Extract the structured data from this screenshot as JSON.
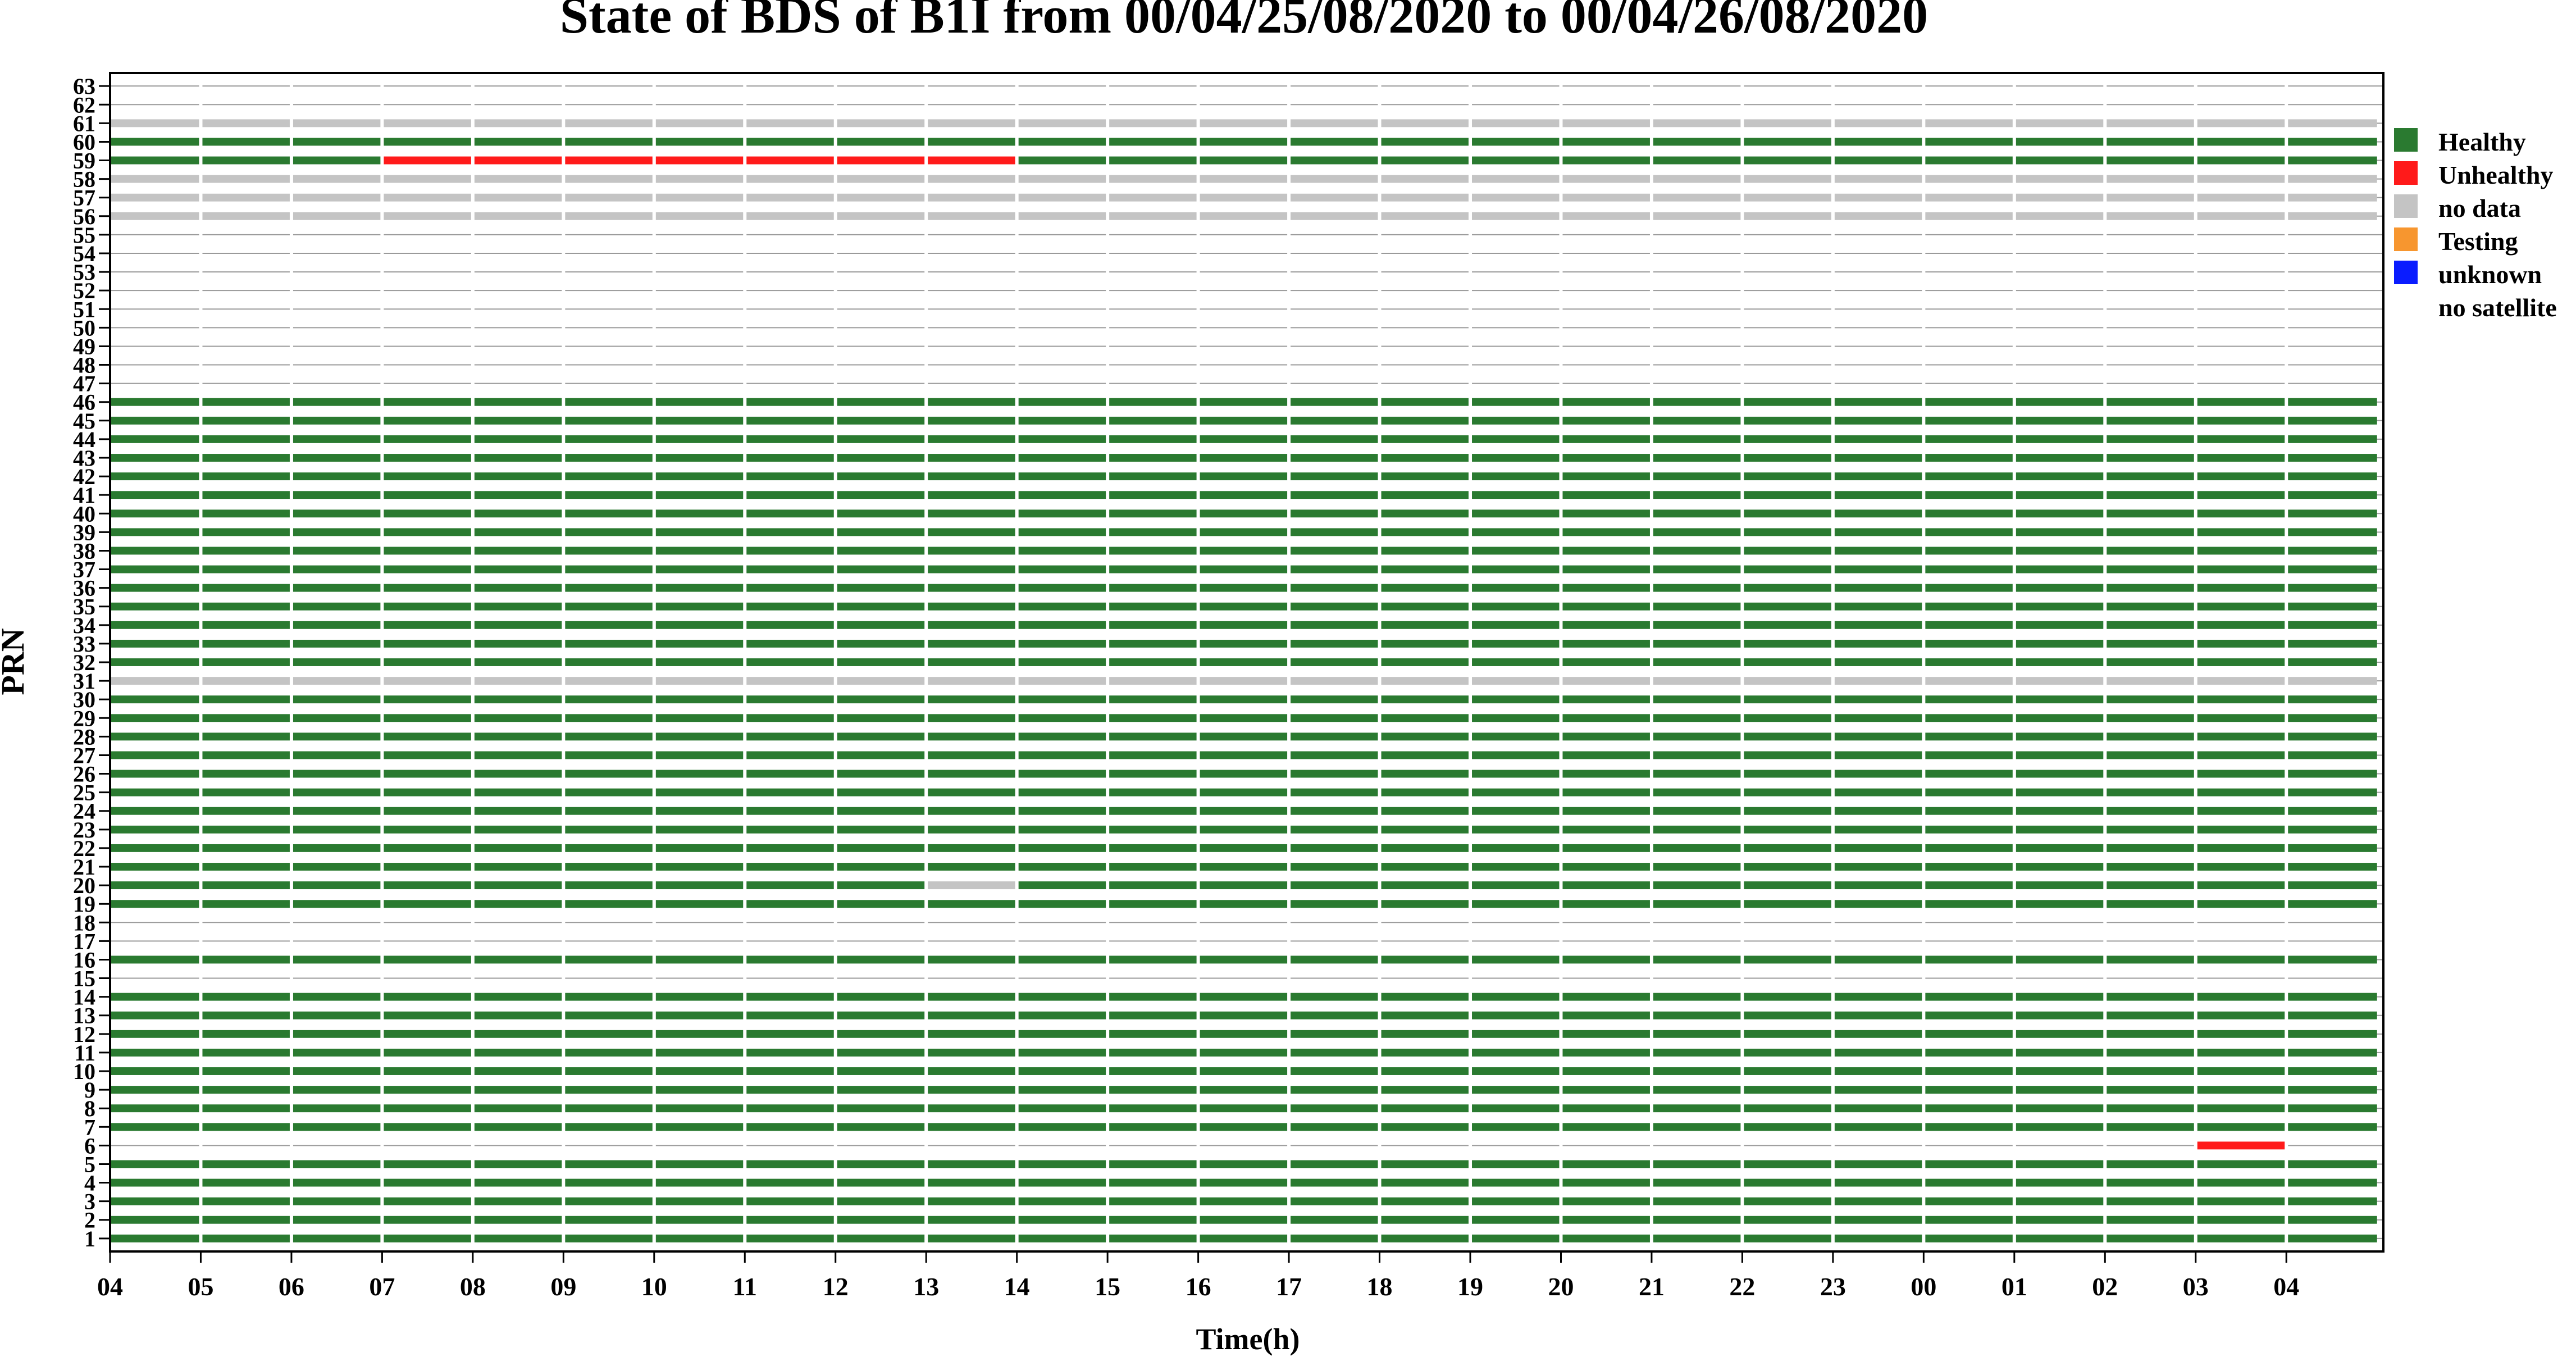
{
  "chart_data": {
    "type": "heatmap",
    "title": "State of BDS of B1I from 00/04/25/08/2020 to 00/04/26/08/2020",
    "xlabel": "Time(h)",
    "ylabel": "PRN",
    "x_ticks": [
      "04",
      "05",
      "06",
      "07",
      "08",
      "09",
      "10",
      "11",
      "12",
      "13",
      "14",
      "15",
      "16",
      "17",
      "18",
      "19",
      "20",
      "21",
      "22",
      "23",
      "00",
      "01",
      "02",
      "03",
      "04"
    ],
    "x_range_hours": [
      0,
      25
    ],
    "y_ticks": [
      "1",
      "2",
      "3",
      "4",
      "5",
      "6",
      "7",
      "8",
      "9",
      "10",
      "11",
      "12",
      "13",
      "14",
      "15",
      "16",
      "17",
      "18",
      "19",
      "20",
      "21",
      "22",
      "23",
      "24",
      "25",
      "26",
      "27",
      "28",
      "29",
      "30",
      "31",
      "32",
      "33",
      "34",
      "35",
      "36",
      "37",
      "38",
      "39",
      "40",
      "41",
      "42",
      "43",
      "44",
      "45",
      "46",
      "47",
      "48",
      "49",
      "50",
      "51",
      "52",
      "53",
      "54",
      "55",
      "56",
      "57",
      "58",
      "59",
      "60",
      "61",
      "62",
      "63"
    ],
    "y_range": [
      1,
      63
    ],
    "grid": true,
    "legend_position": "right",
    "legend": [
      {
        "label": "Healthy",
        "color": "#2a7a30"
      },
      {
        "label": "Unhealthy",
        "color": "#ff1a1a"
      },
      {
        "label": "no data",
        "color": "#c4c4c4"
      },
      {
        "label": "Testing",
        "color": "#f7962f"
      },
      {
        "label": "unknown",
        "color": "#0a1cff"
      },
      {
        "label": "no satellite",
        "color": ""
      }
    ],
    "state_colors": {
      "healthy": "#2a7a30",
      "unhealthy": "#ff1a1a",
      "nodata": "#c4c4c4",
      "testing": "#f7962f",
      "unknown": "#0a1cff"
    },
    "series": [
      {
        "prn": 1,
        "segments": [
          {
            "start": 0,
            "end": 25,
            "state": "healthy"
          }
        ]
      },
      {
        "prn": 2,
        "segments": [
          {
            "start": 0,
            "end": 25,
            "state": "healthy"
          }
        ]
      },
      {
        "prn": 3,
        "segments": [
          {
            "start": 0,
            "end": 25,
            "state": "healthy"
          }
        ]
      },
      {
        "prn": 4,
        "segments": [
          {
            "start": 0,
            "end": 25,
            "state": "healthy"
          }
        ]
      },
      {
        "prn": 5,
        "segments": [
          {
            "start": 0,
            "end": 25,
            "state": "healthy"
          }
        ]
      },
      {
        "prn": 6,
        "segments": [
          {
            "start": 23,
            "end": 24,
            "state": "unhealthy"
          }
        ]
      },
      {
        "prn": 7,
        "segments": [
          {
            "start": 0,
            "end": 25,
            "state": "healthy"
          }
        ]
      },
      {
        "prn": 8,
        "segments": [
          {
            "start": 0,
            "end": 25,
            "state": "healthy"
          }
        ]
      },
      {
        "prn": 9,
        "segments": [
          {
            "start": 0,
            "end": 25,
            "state": "healthy"
          }
        ]
      },
      {
        "prn": 10,
        "segments": [
          {
            "start": 0,
            "end": 25,
            "state": "healthy"
          }
        ]
      },
      {
        "prn": 11,
        "segments": [
          {
            "start": 0,
            "end": 25,
            "state": "healthy"
          }
        ]
      },
      {
        "prn": 12,
        "segments": [
          {
            "start": 0,
            "end": 25,
            "state": "healthy"
          }
        ]
      },
      {
        "prn": 13,
        "segments": [
          {
            "start": 0,
            "end": 25,
            "state": "healthy"
          }
        ]
      },
      {
        "prn": 14,
        "segments": [
          {
            "start": 0,
            "end": 25,
            "state": "healthy"
          }
        ]
      },
      {
        "prn": 15,
        "segments": []
      },
      {
        "prn": 16,
        "segments": [
          {
            "start": 0,
            "end": 25,
            "state": "healthy"
          }
        ]
      },
      {
        "prn": 17,
        "segments": []
      },
      {
        "prn": 18,
        "segments": []
      },
      {
        "prn": 19,
        "segments": [
          {
            "start": 0,
            "end": 25,
            "state": "healthy"
          }
        ]
      },
      {
        "prn": 20,
        "segments": [
          {
            "start": 0,
            "end": 9,
            "state": "healthy"
          },
          {
            "start": 9,
            "end": 10,
            "state": "nodata"
          },
          {
            "start": 10,
            "end": 25,
            "state": "healthy"
          }
        ]
      },
      {
        "prn": 21,
        "segments": [
          {
            "start": 0,
            "end": 25,
            "state": "healthy"
          }
        ]
      },
      {
        "prn": 22,
        "segments": [
          {
            "start": 0,
            "end": 25,
            "state": "healthy"
          }
        ]
      },
      {
        "prn": 23,
        "segments": [
          {
            "start": 0,
            "end": 25,
            "state": "healthy"
          }
        ]
      },
      {
        "prn": 24,
        "segments": [
          {
            "start": 0,
            "end": 25,
            "state": "healthy"
          }
        ]
      },
      {
        "prn": 25,
        "segments": [
          {
            "start": 0,
            "end": 25,
            "state": "healthy"
          }
        ]
      },
      {
        "prn": 26,
        "segments": [
          {
            "start": 0,
            "end": 25,
            "state": "healthy"
          }
        ]
      },
      {
        "prn": 27,
        "segments": [
          {
            "start": 0,
            "end": 25,
            "state": "healthy"
          }
        ]
      },
      {
        "prn": 28,
        "segments": [
          {
            "start": 0,
            "end": 25,
            "state": "healthy"
          }
        ]
      },
      {
        "prn": 29,
        "segments": [
          {
            "start": 0,
            "end": 25,
            "state": "healthy"
          }
        ]
      },
      {
        "prn": 30,
        "segments": [
          {
            "start": 0,
            "end": 25,
            "state": "healthy"
          }
        ]
      },
      {
        "prn": 31,
        "segments": [
          {
            "start": 0,
            "end": 25,
            "state": "nodata"
          }
        ]
      },
      {
        "prn": 32,
        "segments": [
          {
            "start": 0,
            "end": 25,
            "state": "healthy"
          }
        ]
      },
      {
        "prn": 33,
        "segments": [
          {
            "start": 0,
            "end": 25,
            "state": "healthy"
          }
        ]
      },
      {
        "prn": 34,
        "segments": [
          {
            "start": 0,
            "end": 25,
            "state": "healthy"
          }
        ]
      },
      {
        "prn": 35,
        "segments": [
          {
            "start": 0,
            "end": 25,
            "state": "healthy"
          }
        ]
      },
      {
        "prn": 36,
        "segments": [
          {
            "start": 0,
            "end": 25,
            "state": "healthy"
          }
        ]
      },
      {
        "prn": 37,
        "segments": [
          {
            "start": 0,
            "end": 25,
            "state": "healthy"
          }
        ]
      },
      {
        "prn": 38,
        "segments": [
          {
            "start": 0,
            "end": 25,
            "state": "healthy"
          }
        ]
      },
      {
        "prn": 39,
        "segments": [
          {
            "start": 0,
            "end": 25,
            "state": "healthy"
          }
        ]
      },
      {
        "prn": 40,
        "segments": [
          {
            "start": 0,
            "end": 25,
            "state": "healthy"
          }
        ]
      },
      {
        "prn": 41,
        "segments": [
          {
            "start": 0,
            "end": 25,
            "state": "healthy"
          }
        ]
      },
      {
        "prn": 42,
        "segments": [
          {
            "start": 0,
            "end": 25,
            "state": "healthy"
          }
        ]
      },
      {
        "prn": 43,
        "segments": [
          {
            "start": 0,
            "end": 25,
            "state": "healthy"
          }
        ]
      },
      {
        "prn": 44,
        "segments": [
          {
            "start": 0,
            "end": 25,
            "state": "healthy"
          }
        ]
      },
      {
        "prn": 45,
        "segments": [
          {
            "start": 0,
            "end": 25,
            "state": "healthy"
          }
        ]
      },
      {
        "prn": 46,
        "segments": [
          {
            "start": 0,
            "end": 25,
            "state": "healthy"
          }
        ]
      },
      {
        "prn": 47,
        "segments": []
      },
      {
        "prn": 48,
        "segments": []
      },
      {
        "prn": 49,
        "segments": []
      },
      {
        "prn": 50,
        "segments": []
      },
      {
        "prn": 51,
        "segments": []
      },
      {
        "prn": 52,
        "segments": []
      },
      {
        "prn": 53,
        "segments": []
      },
      {
        "prn": 54,
        "segments": []
      },
      {
        "prn": 55,
        "segments": []
      },
      {
        "prn": 56,
        "segments": [
          {
            "start": 0,
            "end": 25,
            "state": "nodata"
          }
        ]
      },
      {
        "prn": 57,
        "segments": [
          {
            "start": 0,
            "end": 25,
            "state": "nodata"
          }
        ]
      },
      {
        "prn": 58,
        "segments": [
          {
            "start": 0,
            "end": 25,
            "state": "nodata"
          }
        ]
      },
      {
        "prn": 59,
        "segments": [
          {
            "start": 0,
            "end": 3,
            "state": "healthy"
          },
          {
            "start": 3,
            "end": 10,
            "state": "unhealthy"
          },
          {
            "start": 10,
            "end": 25,
            "state": "healthy"
          }
        ]
      },
      {
        "prn": 60,
        "segments": [
          {
            "start": 0,
            "end": 25,
            "state": "healthy"
          }
        ]
      },
      {
        "prn": 61,
        "segments": [
          {
            "start": 0,
            "end": 25,
            "state": "nodata"
          }
        ]
      },
      {
        "prn": 62,
        "segments": []
      },
      {
        "prn": 63,
        "segments": []
      }
    ]
  }
}
